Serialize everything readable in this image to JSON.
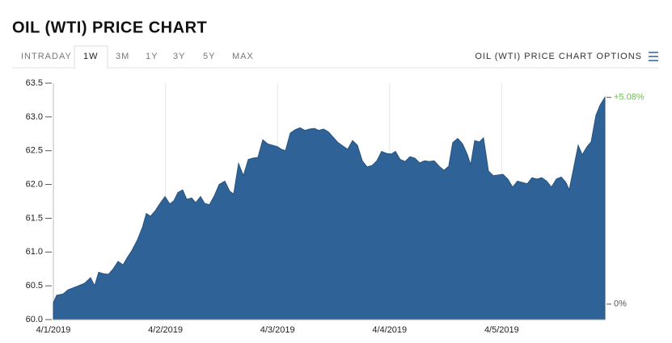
{
  "header": {
    "title": "OIL (WTI) PRICE CHART",
    "tabs": [
      "INTRADAY",
      "1W",
      "3M",
      "1Y",
      "3Y",
      "5Y",
      "MAX"
    ],
    "active_tab": 1,
    "options": "OIL (WTI) PRICE CHART OPTIONS"
  },
  "chart_data": {
    "type": "area",
    "color": "#2f6398",
    "x": [
      0,
      0.029,
      0.087,
      0.13,
      0.209,
      0.281,
      0.332,
      0.368,
      0.404,
      0.447,
      0.491,
      0.534,
      0.577,
      0.621,
      0.664,
      0.7,
      0.75,
      0.794,
      0.83,
      0.866,
      0.909,
      0.952,
      0.996,
      1.039,
      1.075,
      1.111,
      1.154,
      1.19,
      1.234,
      1.27,
      1.313,
      1.349,
      1.392,
      1.436,
      1.479,
      1.53,
      1.573,
      1.609,
      1.652,
      1.696,
      1.739,
      1.782,
      1.825,
      1.869,
      1.912,
      1.955,
      1.999,
      2.035,
      2.071,
      2.114,
      2.157,
      2.201,
      2.244,
      2.287,
      2.33,
      2.367,
      2.41,
      2.453,
      2.496,
      2.54,
      2.583,
      2.626,
      2.67,
      2.713,
      2.756,
      2.799,
      2.843,
      2.886,
      2.929,
      2.973,
      3.016,
      3.052,
      3.095,
      3.139,
      3.182,
      3.225,
      3.268,
      3.312,
      3.355,
      3.398,
      3.442,
      3.485,
      3.528,
      3.564,
      3.608,
      3.651,
      3.694,
      3.723,
      3.759,
      3.802,
      3.838,
      3.882,
      3.925,
      3.968,
      4.012,
      4.055,
      4.098,
      4.141,
      4.185,
      4.228,
      4.271,
      4.315,
      4.358,
      4.401,
      4.444,
      4.488,
      4.531,
      4.574,
      4.603,
      4.647,
      4.683,
      4.719,
      4.762,
      4.798,
      4.841,
      4.877,
      4.921
    ],
    "values": [
      60.25,
      60.36,
      60.38,
      60.44,
      60.49,
      60.54,
      60.62,
      60.5,
      60.7,
      60.68,
      60.67,
      60.75,
      60.86,
      60.81,
      60.93,
      61.02,
      61.18,
      61.36,
      61.57,
      61.53,
      61.61,
      61.72,
      61.82,
      61.71,
      61.76,
      61.88,
      61.92,
      61.78,
      61.8,
      61.73,
      61.82,
      61.72,
      61.7,
      61.83,
      62,
      62.05,
      61.9,
      61.86,
      62.31,
      62.13,
      62.37,
      62.39,
      62.4,
      62.66,
      62.6,
      62.58,
      62.56,
      62.52,
      62.5,
      62.76,
      62.81,
      62.84,
      62.8,
      62.82,
      62.83,
      62.8,
      62.82,
      62.78,
      62.7,
      62.62,
      62.57,
      62.52,
      62.65,
      62.58,
      62.35,
      62.26,
      62.28,
      62.35,
      62.49,
      62.46,
      62.45,
      62.49,
      62.37,
      62.34,
      62.41,
      62.39,
      62.32,
      62.35,
      62.34,
      62.35,
      62.27,
      62.21,
      62.27,
      62.62,
      62.68,
      62.6,
      62.44,
      62.29,
      62.65,
      62.63,
      62.69,
      62.2,
      62.13,
      62.14,
      62.15,
      62.08,
      61.96,
      62.05,
      62.03,
      62.01,
      62.1,
      62.08,
      62.1,
      62.05,
      61.96,
      62.08,
      62.11,
      62.03,
      61.92,
      62.28,
      62.58,
      62.44,
      62.56,
      62.63,
      63.02,
      63.17,
      63.29
    ],
    "xlim": [
      0,
      4.921
    ],
    "xticks": [
      {
        "value": 0,
        "label": "4/1/2019"
      },
      {
        "value": 1,
        "label": "4/2/2019"
      },
      {
        "value": 2,
        "label": "4/3/2019"
      },
      {
        "value": 3,
        "label": "4/4/2019"
      },
      {
        "value": 4,
        "label": "4/5/2019"
      }
    ],
    "ylim": [
      60,
      63.5
    ],
    "yticks": [
      {
        "value": 60,
        "label": "60.0"
      },
      60.5,
      {
        "value": 61,
        "label": "61.0"
      },
      61.5,
      {
        "value": 62,
        "label": "62.0"
      },
      62.5,
      {
        "value": 63,
        "label": "63.0"
      },
      63.5
    ],
    "y2lim": [
      -0.38,
      5.43
    ],
    "y2ticks": [
      {
        "value": 0,
        "label": "0%",
        "color": "#555555"
      },
      {
        "value": 5.08,
        "label": "+5.08%",
        "color": "#6cbf4a"
      }
    ],
    "grid": true
  }
}
